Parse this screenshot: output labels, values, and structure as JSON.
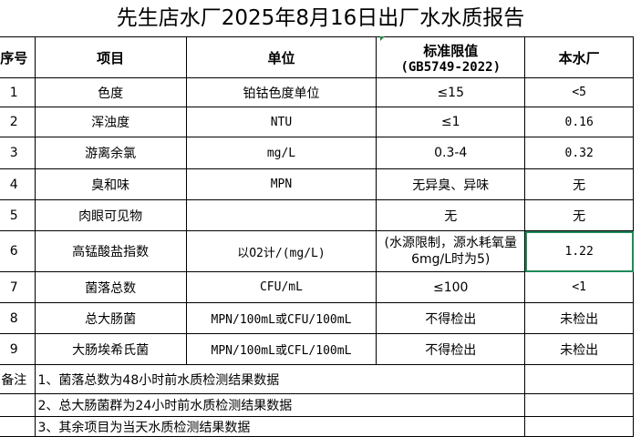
{
  "title": "先生店水厂2025年8月16日出厂水水质报告",
  "headers": {
    "no": "序号",
    "item": "项目",
    "unit": "单位",
    "standard_line1": "标准限值",
    "standard_line2": "(GB5749-2022)",
    "plant": "本水厂"
  },
  "rows": [
    {
      "no": "1",
      "item": "色度",
      "unit": "铂钴色度单位",
      "standard": "≤15",
      "value": "<5"
    },
    {
      "no": "2",
      "item": "浑浊度",
      "unit": "NTU",
      "standard": "≤1",
      "value": "0.16"
    },
    {
      "no": "3",
      "item": "游离余氯",
      "unit": "mg/L",
      "standard": "0.3-4",
      "value": "0.32"
    },
    {
      "no": "4",
      "item": "臭和味",
      "unit": "MPN",
      "standard": "无异臭、异味",
      "value": "无"
    },
    {
      "no": "5",
      "item": "肉眼可见物",
      "unit": "",
      "standard": "无",
      "value": "无"
    },
    {
      "no": "6",
      "item": "高锰酸盐指数",
      "unit": "以O2计/(mg/L)",
      "standard": "(水源限制，源水耗氧量6mg/L时为5)",
      "value": "1.22"
    },
    {
      "no": "7",
      "item": "菌落总数",
      "unit": "CFU/mL",
      "standard": "≤100",
      "value": "<1"
    },
    {
      "no": "8",
      "item": "总大肠菌",
      "unit": "MPN/100mL或CFU/100mL",
      "standard": "不得检出",
      "value": "未检出"
    },
    {
      "no": "9",
      "item": "大肠埃希氏菌",
      "unit": "MPN/100mL或CFL/100mL",
      "standard": "不得检出",
      "value": "未检出"
    }
  ],
  "notes": {
    "label": "备注",
    "items": [
      "1、菌落总数为48小时前水质检测结果数据",
      "2、总大肠菌群为24小时前水质检测结果数据",
      "3、其余项目为当天水质检测结果数据"
    ]
  },
  "colors": {
    "selection": "#1e8a5a"
  }
}
